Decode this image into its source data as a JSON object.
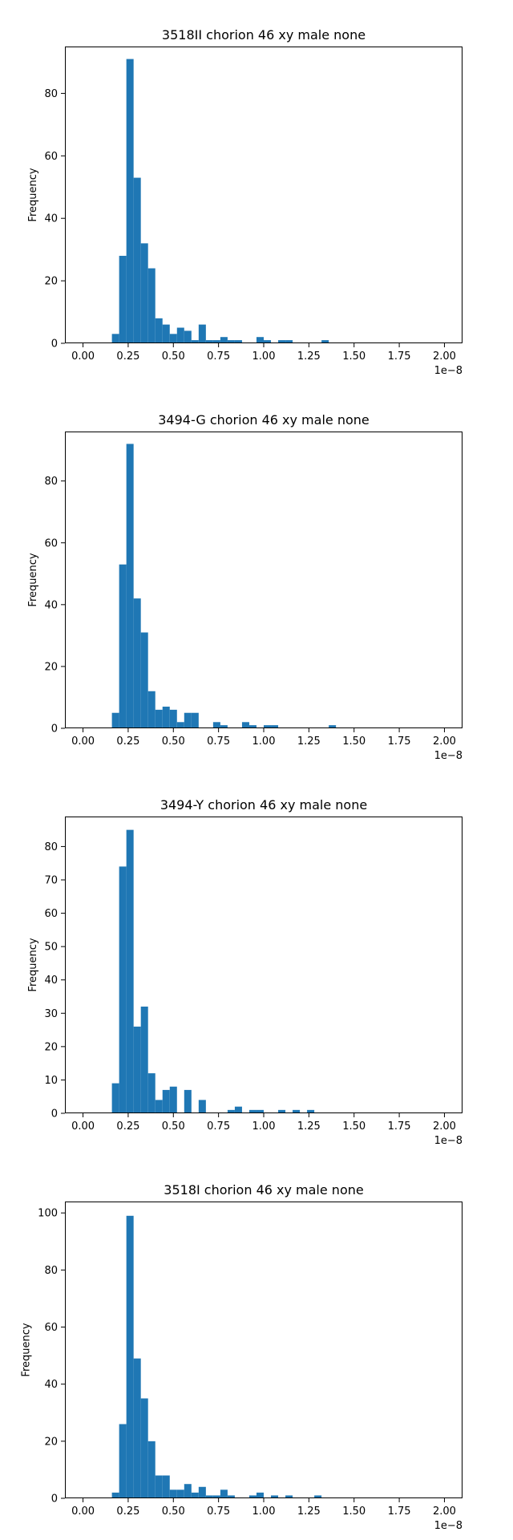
{
  "chart_data": [
    {
      "type": "histogram",
      "title": "3518II chorion 46 xy male none",
      "xlabel": "",
      "ylabel": "Frequency",
      "x_offset_label": "1e−8",
      "xlim": [
        -0.1,
        2.1
      ],
      "ylim": [
        0,
        95
      ],
      "xticks": [
        "0.00",
        "0.25",
        "0.50",
        "0.75",
        "1.00",
        "1.25",
        "1.50",
        "1.75",
        "2.00"
      ],
      "yticks": [
        0,
        20,
        40,
        60,
        80
      ],
      "bin_start": 0.0,
      "bin_width": 0.04,
      "color": "#1f77b4",
      "grid": false,
      "counts": [
        0,
        0,
        0,
        0,
        3,
        28,
        91,
        53,
        32,
        24,
        8,
        6,
        3,
        5,
        4,
        1,
        6,
        1,
        1,
        2,
        1,
        1,
        0,
        0,
        2,
        1,
        0,
        1,
        1,
        0,
        0,
        0,
        0,
        1,
        0,
        0,
        0,
        0,
        0,
        0,
        0,
        0,
        0,
        0,
        0,
        0,
        0,
        0,
        0,
        0
      ]
    },
    {
      "type": "histogram",
      "title": "3494-G chorion 46 xy male none",
      "xlabel": "",
      "ylabel": "Frequency",
      "x_offset_label": "1e−8",
      "xlim": [
        -0.1,
        2.1
      ],
      "ylim": [
        0,
        96
      ],
      "xticks": [
        "0.00",
        "0.25",
        "0.50",
        "0.75",
        "1.00",
        "1.25",
        "1.50",
        "1.75",
        "2.00"
      ],
      "yticks": [
        0,
        20,
        40,
        60,
        80
      ],
      "bin_start": 0.0,
      "bin_width": 0.04,
      "color": "#1f77b4",
      "grid": false,
      "counts": [
        0,
        0,
        0,
        0,
        5,
        53,
        92,
        42,
        31,
        12,
        6,
        7,
        6,
        2,
        5,
        5,
        0,
        0,
        2,
        1,
        0,
        0,
        2,
        1,
        0,
        1,
        1,
        0,
        0,
        0,
        0,
        0,
        0,
        0,
        1,
        0,
        0,
        0,
        0,
        0,
        0,
        0,
        0,
        0,
        0,
        0,
        0,
        0,
        0,
        0
      ]
    },
    {
      "type": "histogram",
      "title": "3494-Y chorion 46 xy male none",
      "xlabel": "",
      "ylabel": "Frequency",
      "x_offset_label": "1e−8",
      "xlim": [
        -0.1,
        2.1
      ],
      "ylim": [
        0,
        89
      ],
      "xticks": [
        "0.00",
        "0.25",
        "0.50",
        "0.75",
        "1.00",
        "1.25",
        "1.50",
        "1.75",
        "2.00"
      ],
      "yticks": [
        0,
        10,
        20,
        30,
        40,
        50,
        60,
        70,
        80
      ],
      "bin_start": 0.0,
      "bin_width": 0.04,
      "color": "#1f77b4",
      "grid": false,
      "counts": [
        0,
        0,
        0,
        0,
        9,
        74,
        85,
        26,
        32,
        12,
        4,
        7,
        8,
        0,
        7,
        0,
        4,
        0,
        0,
        0,
        1,
        2,
        0,
        1,
        1,
        0,
        0,
        1,
        0,
        1,
        0,
        1,
        0,
        0,
        0,
        0,
        0,
        0,
        0,
        0,
        0,
        0,
        0,
        0,
        0,
        0,
        0,
        0,
        0,
        0
      ]
    },
    {
      "type": "histogram",
      "title": "3518I chorion 46 xy male none",
      "xlabel": "",
      "ylabel": "Frequency",
      "x_offset_label": "1e−8",
      "xlim": [
        -0.1,
        2.1
      ],
      "ylim": [
        0,
        104
      ],
      "xticks": [
        "0.00",
        "0.25",
        "0.50",
        "0.75",
        "1.00",
        "1.25",
        "1.50",
        "1.75",
        "2.00"
      ],
      "yticks": [
        0,
        20,
        40,
        60,
        80,
        100
      ],
      "bin_start": 0.0,
      "bin_width": 0.04,
      "color": "#1f77b4",
      "grid": false,
      "counts": [
        0,
        0,
        0,
        0,
        2,
        26,
        99,
        49,
        35,
        20,
        8,
        8,
        3,
        3,
        5,
        2,
        4,
        1,
        1,
        3,
        1,
        0,
        0,
        1,
        2,
        0,
        1,
        0,
        1,
        0,
        0,
        0,
        1,
        0,
        0,
        0,
        0,
        0,
        0,
        0,
        0,
        0,
        0,
        0,
        0,
        0,
        0,
        0,
        0,
        0
      ]
    }
  ]
}
